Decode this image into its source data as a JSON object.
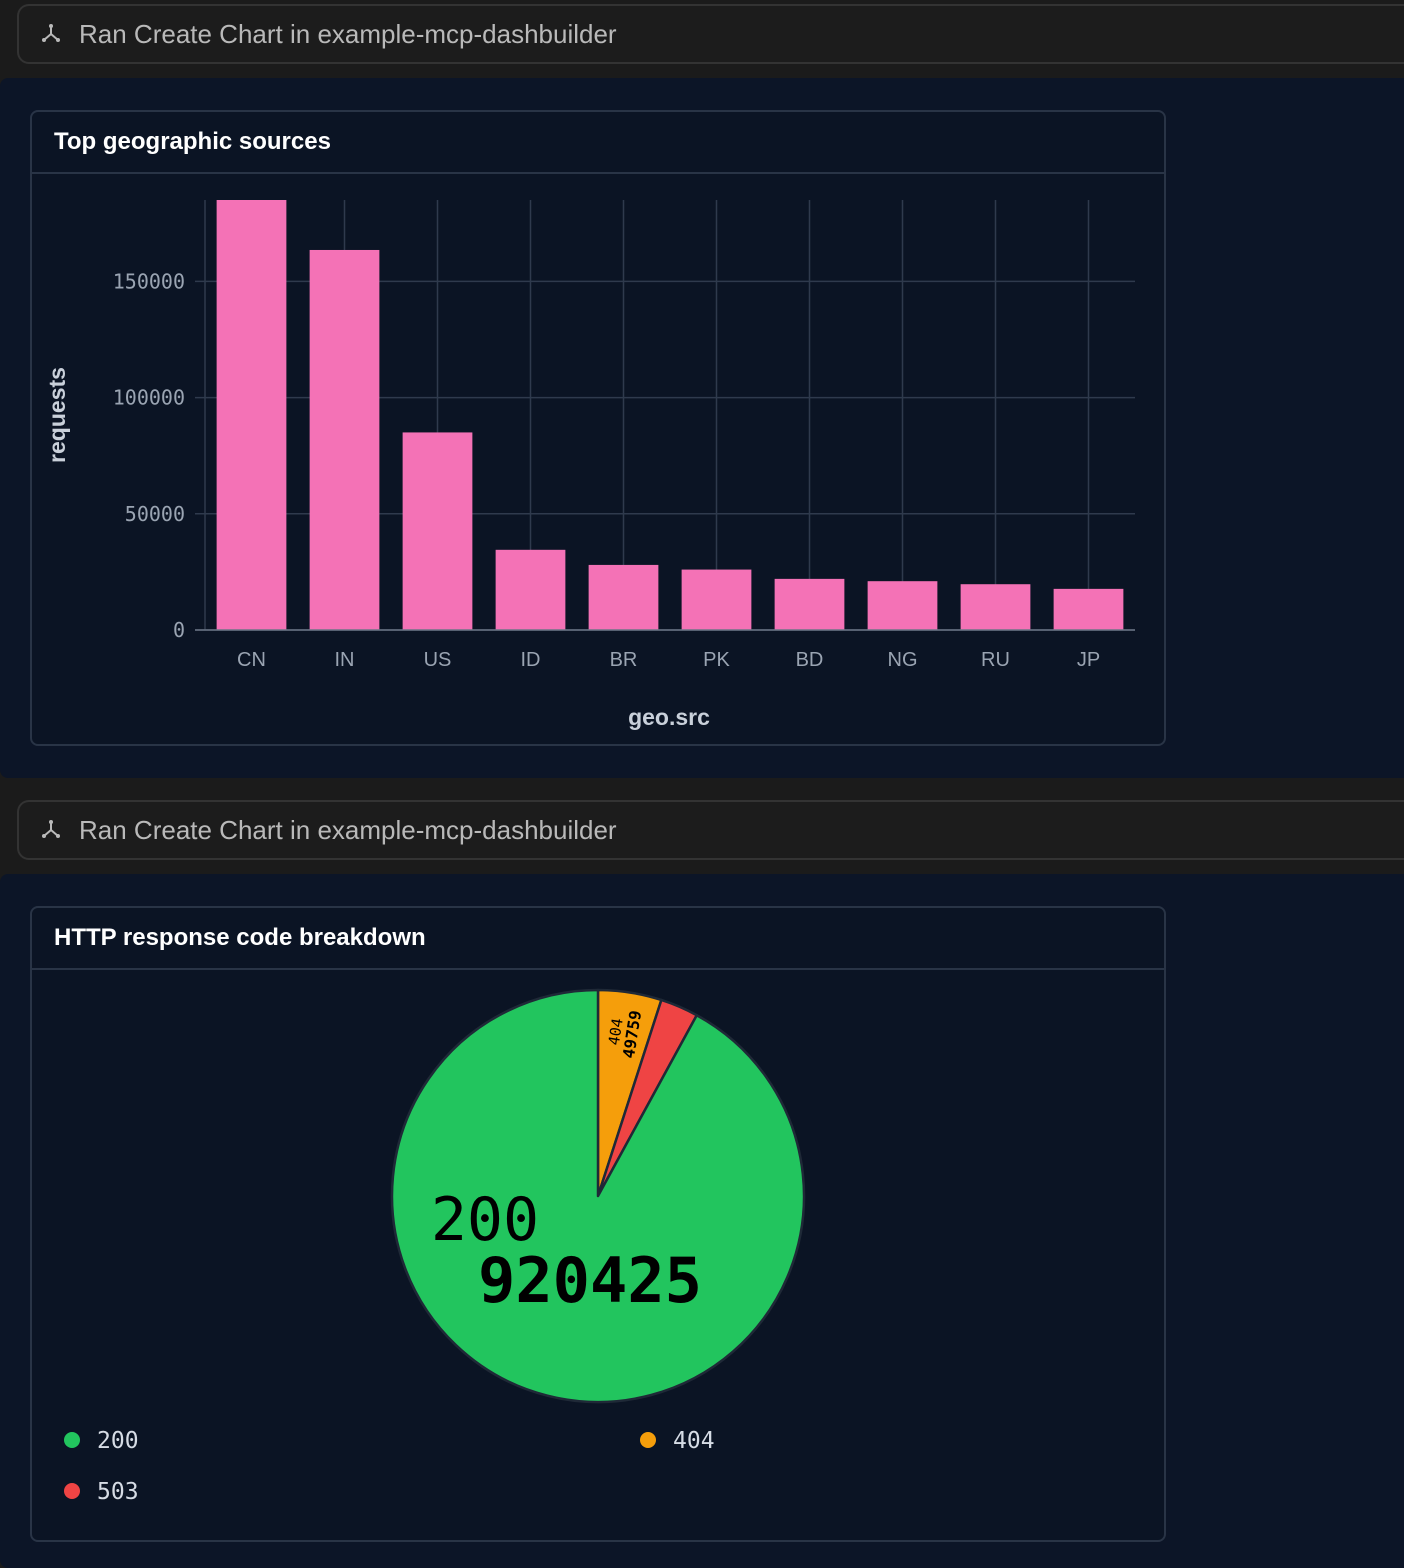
{
  "tool_calls": [
    {
      "text": "Ran Create Chart in example-mcp-dashbuilder",
      "icon": "mcp-tool-icon"
    },
    {
      "text": "Ran Create Chart in example-mcp-dashbuilder",
      "icon": "mcp-tool-icon"
    }
  ],
  "colors": {
    "bar": "#f472b6",
    "pie_200": "#22c55e",
    "pie_404": "#f59e0b",
    "pie_503": "#ef4444",
    "panel_bg": "#0c1527"
  },
  "chart_data": [
    {
      "type": "bar",
      "title": "Top geographic sources",
      "xlabel": "geo.src",
      "ylabel": "requests",
      "categories": [
        "CN",
        "IN",
        "US",
        "ID",
        "BR",
        "PK",
        "BD",
        "NG",
        "RU",
        "JP"
      ],
      "values": [
        185000,
        163500,
        85000,
        34500,
        28000,
        26000,
        22000,
        21000,
        19700,
        17700
      ],
      "ylim": [
        0,
        185000
      ],
      "yticks": [
        0,
        50000,
        100000,
        150000
      ],
      "grid": true,
      "legend": "none"
    },
    {
      "type": "pie",
      "title": "HTTP response code breakdown",
      "slices": [
        {
          "label": "200",
          "value": 920425,
          "color": "#22c55e"
        },
        {
          "label": "404",
          "value": 49759,
          "color": "#f59e0b"
        },
        {
          "label": "503",
          "value": 29816,
          "color": "#ef4444"
        }
      ],
      "slice_labels": [
        {
          "code": "200",
          "value": "920425"
        },
        {
          "code": "404",
          "value": "49759"
        }
      ],
      "legend_entries": [
        {
          "label": "200",
          "color": "#22c55e"
        },
        {
          "label": "404",
          "color": "#f59e0b"
        },
        {
          "label": "503",
          "color": "#ef4444"
        }
      ],
      "legend": "bottom"
    }
  ]
}
